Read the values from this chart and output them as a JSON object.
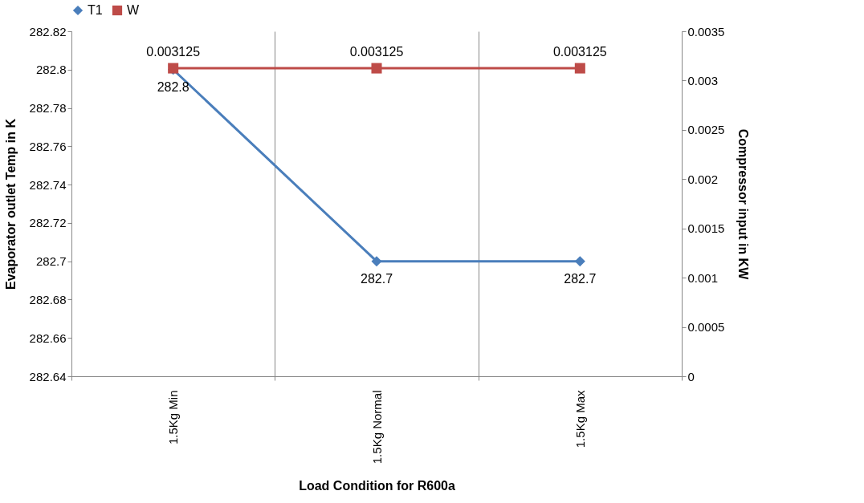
{
  "chart_data": {
    "type": "line",
    "xlabel": "Load Condition for R600a",
    "ylabel": "Evaporator outlet Temp in K",
    "y2label": "Compressor input in KW",
    "categories": [
      "1.5Kg Min",
      "1.5Kg Normal",
      "1.5Kg Max"
    ],
    "series": [
      {
        "name": "T1",
        "color": "#4a7ebb",
        "marker": "diamond",
        "values": [
          282.8,
          282.7,
          282.7
        ]
      },
      {
        "name": "W",
        "color": "#be4b48",
        "marker": "square",
        "axis": "y2",
        "values": [
          0.003125,
          0.003125,
          0.003125
        ]
      }
    ],
    "ylim": [
      282.64,
      282.82
    ],
    "yticks": [
      282.64,
      282.66,
      282.68,
      282.7,
      282.72,
      282.74,
      282.76,
      282.78,
      282.8,
      282.82
    ],
    "y2lim": [
      0,
      0.0035
    ],
    "y2ticks": [
      0,
      0.0005,
      0.001,
      0.0015,
      0.002,
      0.0025,
      0.003,
      0.0035
    ],
    "data_labels": true,
    "grid": "x",
    "legend": "top",
    "line_style": "solid"
  }
}
